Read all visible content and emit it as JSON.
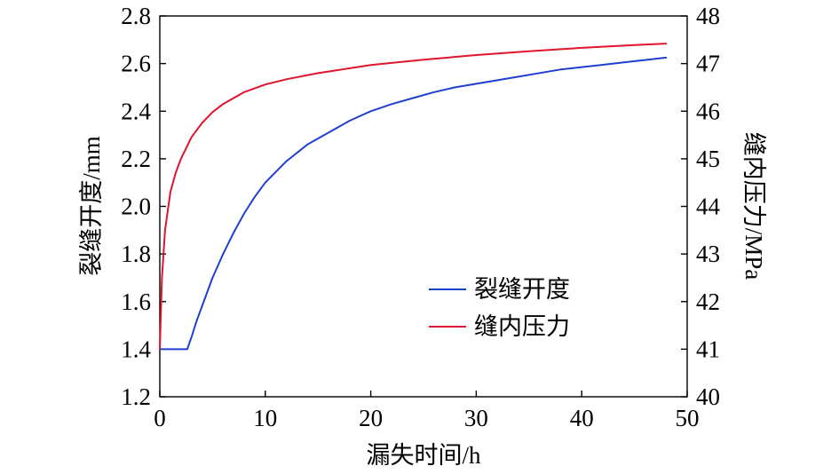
{
  "chart_data": {
    "type": "line",
    "xlabel": "漏失时间/h",
    "ylabel_left": "裂缝开度/mm",
    "ylabel_right": "缝内压力/MPa",
    "xlim": [
      0,
      50
    ],
    "ylim_left": [
      1.2,
      2.8
    ],
    "ylim_right": [
      40,
      48
    ],
    "x_ticks": [
      0,
      10,
      20,
      30,
      40,
      50
    ],
    "y_ticks_left": [
      1.2,
      1.4,
      1.6,
      1.8,
      2.0,
      2.2,
      2.4,
      2.6,
      2.8
    ],
    "y_ticks_left_labels": [
      "1.2",
      "1.4",
      "1.6",
      "1.8",
      "2.0",
      "2.2",
      "2.4",
      "2.6",
      "2.8"
    ],
    "y_ticks_right": [
      40,
      41,
      42,
      43,
      44,
      45,
      46,
      47,
      48
    ],
    "grid": false,
    "legend_position": "center-right",
    "series": [
      {
        "name": "裂缝开度",
        "axis": "left",
        "color": "#1f3fd0",
        "x": [
          0,
          2.6,
          3,
          3.5,
          4,
          5,
          6,
          7,
          8,
          9,
          10,
          12,
          14,
          16,
          18,
          20,
          22,
          24,
          26,
          28,
          30,
          32,
          34,
          36,
          38,
          40,
          42,
          44,
          46,
          48
        ],
        "y": [
          1.4,
          1.4,
          1.45,
          1.52,
          1.58,
          1.7,
          1.8,
          1.89,
          1.97,
          2.04,
          2.1,
          2.19,
          2.26,
          2.31,
          2.36,
          2.4,
          2.43,
          2.455,
          2.48,
          2.5,
          2.515,
          2.53,
          2.545,
          2.56,
          2.575,
          2.585,
          2.595,
          2.605,
          2.615,
          2.625
        ]
      },
      {
        "name": "缝内压力",
        "axis": "right",
        "color": "#e0142d",
        "x": [
          0,
          0.2,
          0.5,
          1,
          1.5,
          2,
          3,
          4,
          5,
          6,
          8,
          10,
          12,
          15,
          20,
          25,
          30,
          35,
          40,
          45,
          48
        ],
        "y": [
          41.0,
          42.5,
          43.5,
          44.3,
          44.7,
          45.0,
          45.45,
          45.75,
          45.98,
          46.15,
          46.4,
          46.56,
          46.67,
          46.8,
          46.97,
          47.08,
          47.18,
          47.26,
          47.33,
          47.39,
          47.42
        ]
      }
    ]
  }
}
